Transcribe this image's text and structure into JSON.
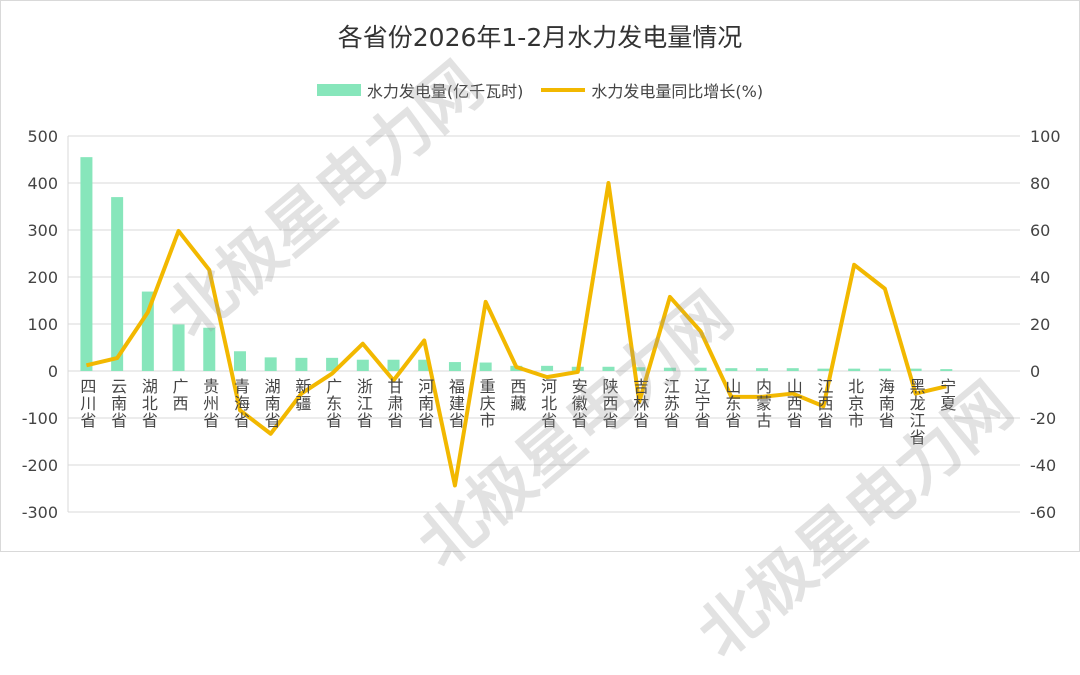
{
  "watermark": "北极星电力网",
  "chart_data": {
    "type": "bar+line",
    "title": "各省份2026年1-2月水力发电量情况",
    "categories": [
      "四川省",
      "云南省",
      "湖北省",
      "广西",
      "贵州省",
      "青海省",
      "湖南省",
      "新疆",
      "广东省",
      "浙江省",
      "甘肃省",
      "河南省",
      "福建省",
      "重庆市",
      "西藏",
      "河北省",
      "安徽省",
      "陕西省",
      "吉林省",
      "江苏省",
      "辽宁省",
      "山东省",
      "内蒙古",
      "山西省",
      "江西省",
      "北京市",
      "海南省",
      "黑龙江省",
      "宁夏"
    ],
    "series": [
      {
        "name": "水力发电量(亿千瓦时)",
        "type": "bar",
        "axis": "left",
        "color": "#87e6bb",
        "values": [
          455,
          370,
          169,
          99,
          92,
          42,
          29,
          28,
          28,
          24,
          24,
          24,
          19,
          18,
          11,
          11,
          9,
          9,
          8,
          7,
          7,
          6,
          6,
          6,
          5,
          5,
          5,
          5,
          4
        ]
      },
      {
        "name": "水力发电量同比增长(%)",
        "type": "line",
        "axis": "right",
        "color": "#f2b800",
        "values": [
          2.4,
          5.5,
          25,
          59.6,
          43,
          -16.7,
          -26.7,
          -9.6,
          -1.1,
          11.6,
          -4,
          13,
          -48.7,
          29.4,
          1.7,
          -2.6,
          -0.4,
          80,
          -13.2,
          31.5,
          16.9,
          -11,
          -11,
          -9.6,
          -15,
          45.2,
          35,
          -9.6,
          -6.5
        ]
      }
    ],
    "ylim_left": [
      -300,
      500
    ],
    "yticks_left": [
      -300,
      -200,
      -100,
      0,
      100,
      200,
      300,
      400,
      500
    ],
    "ylim_right": [
      -60,
      100
    ],
    "yticks_right": [
      -60,
      -40,
      -20,
      0,
      20,
      40,
      60,
      80,
      100
    ],
    "grid": true,
    "legend": "top"
  }
}
